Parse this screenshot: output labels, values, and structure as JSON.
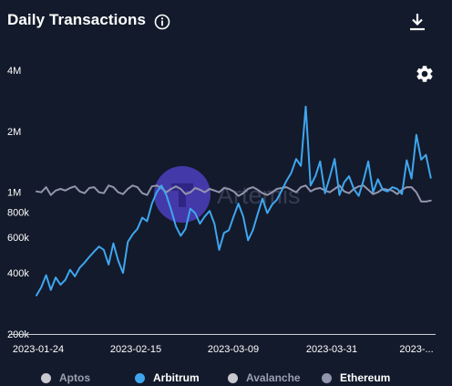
{
  "header": {
    "title": "Daily Transactions",
    "info_icon": "info-circle-icon",
    "download_icon": "download-icon",
    "settings_icon": "gear-icon"
  },
  "watermark": "Artemis",
  "colors": {
    "background": "#131a2b",
    "arbitrum": "#3fa6ee",
    "ethereum": "#9395ad",
    "aptos": "#c8c8ce",
    "avalanche": "#c8c8ce",
    "watermark": "#4c3fbf"
  },
  "chart_data": {
    "type": "line",
    "title": "Daily Transactions",
    "xlabel": "",
    "ylabel": "",
    "y_scale": "log",
    "ylim": [
      200000,
      4000000
    ],
    "y_ticks": [
      {
        "value": 4000000,
        "label": "4M"
      },
      {
        "value": 2000000,
        "label": "2M"
      },
      {
        "value": 1000000,
        "label": "1M"
      },
      {
        "value": 800000,
        "label": "800k"
      },
      {
        "value": 600000,
        "label": "600k"
      },
      {
        "value": 400000,
        "label": "400k"
      },
      {
        "value": 200000,
        "label": "200k"
      }
    ],
    "x_ticks": [
      "2023-01-24",
      "2023-02-15",
      "2023-03-09",
      "2023-03-31",
      "2023-..."
    ],
    "x_range": [
      "2023-01-24",
      "2023-04-17"
    ],
    "grid": false,
    "legend_position": "bottom",
    "series": [
      {
        "name": "Aptos",
        "color": "#c8c8ce",
        "visible": false,
        "values": []
      },
      {
        "name": "Arbitrum",
        "color": "#3fa6ee",
        "visible": true,
        "x_start": "2023-01-24",
        "values": [
          310000,
          340000,
          390000,
          330000,
          380000,
          350000,
          370000,
          415000,
          385000,
          425000,
          450000,
          480000,
          510000,
          540000,
          520000,
          440000,
          560000,
          460000,
          400000,
          570000,
          620000,
          660000,
          750000,
          720000,
          880000,
          1000000,
          1080000,
          970000,
          820000,
          680000,
          610000,
          660000,
          830000,
          790000,
          700000,
          760000,
          810000,
          700000,
          520000,
          630000,
          650000,
          760000,
          880000,
          760000,
          580000,
          650000,
          780000,
          930000,
          790000,
          870000,
          920000,
          1020000,
          1140000,
          1250000,
          1460000,
          1350000,
          2650000,
          1080000,
          1200000,
          1420000,
          990000,
          1190000,
          1460000,
          970000,
          1120000,
          1200000,
          1040000,
          960000,
          1140000,
          1420000,
          1000000,
          1160000,
          1030000,
          1010000,
          1060000,
          1040000,
          980000,
          1440000,
          1170000,
          1920000,
          1450000,
          1530000,
          1180000
        ]
      },
      {
        "name": "Avalanche",
        "color": "#c8c8ce",
        "visible": false,
        "values": []
      },
      {
        "name": "Ethereum",
        "color": "#9395ad",
        "visible": true,
        "x_start": "2023-01-24",
        "values": [
          1010000,
          1000000,
          1060000,
          970000,
          1020000,
          1040000,
          1020000,
          1050000,
          1070000,
          1010000,
          990000,
          1050000,
          1060000,
          1000000,
          990000,
          1080000,
          1060000,
          1000000,
          980000,
          1040000,
          1080000,
          1060000,
          990000,
          970000,
          1070000,
          1080000,
          1050000,
          1000000,
          1040000,
          1070000,
          1040000,
          980000,
          1000000,
          1050000,
          1030000,
          1000000,
          1040000,
          1020000,
          1000000,
          1050000,
          1040000,
          1010000,
          960000,
          990000,
          1040000,
          1060000,
          1030000,
          990000,
          970000,
          1000000,
          1040000,
          1050000,
          1060000,
          1030000,
          1000000,
          1060000,
          1080000,
          1010000,
          1040000,
          1050000,
          1020000,
          1000000,
          1040000,
          1080000,
          1010000,
          990000,
          1040000,
          1070000,
          1080000,
          1030000,
          980000,
          1000000,
          1040000,
          1030000,
          1020000,
          980000,
          1030000,
          1060000,
          1060000,
          1000000,
          900000,
          900000,
          910000
        ]
      }
    ]
  }
}
